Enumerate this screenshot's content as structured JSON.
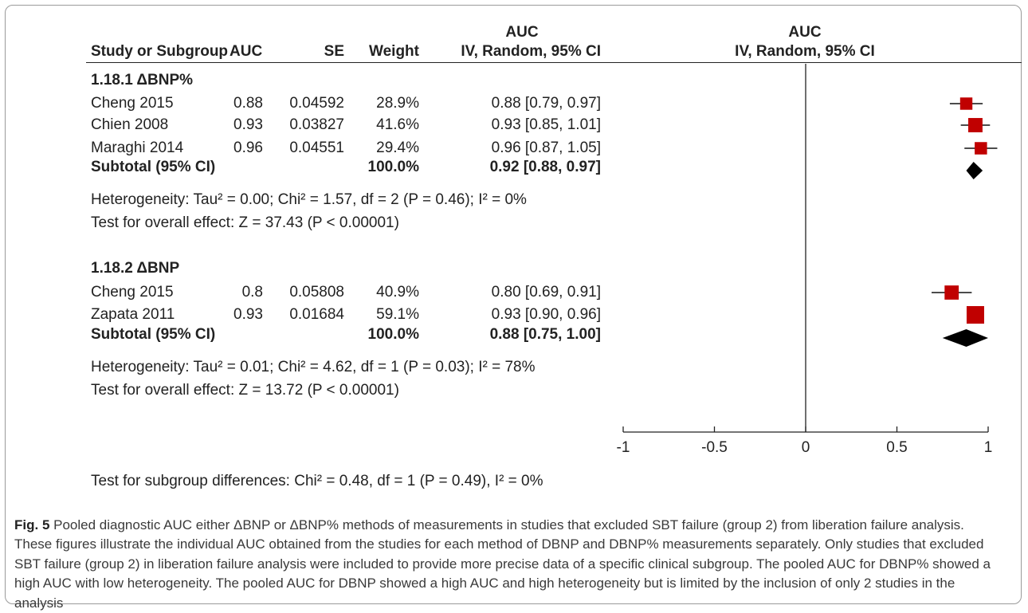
{
  "header": {
    "col_study": "Study or Subgroup",
    "col_auc": "AUC",
    "col_se": "SE",
    "col_weight": "Weight",
    "col_ci_top": "AUC",
    "col_ci": "IV, Random, 95% CI",
    "plot_top": "AUC",
    "plot_sub": "IV, Random, 95% CI"
  },
  "groups": [
    {
      "title": "1.18.1 ΔBNP%",
      "studies": [
        {
          "name": "Cheng 2015",
          "auc": "0.88",
          "se": "0.04592",
          "weight": "28.9%",
          "ci": "0.88 [0.79, 0.97]"
        },
        {
          "name": "Chien 2008",
          "auc": "0.93",
          "se": "0.03827",
          "weight": "41.6%",
          "ci": "0.93 [0.85, 1.01]"
        },
        {
          "name": "Maraghi 2014",
          "auc": "0.96",
          "se": "0.04551",
          "weight": "29.4%",
          "ci": "0.96 [0.87, 1.05]"
        }
      ],
      "subtotal": {
        "label": "Subtotal (95% CI)",
        "weight": "100.0%",
        "ci": "0.92 [0.88, 0.97]"
      },
      "heterogeneity": "Heterogeneity: Tau² = 0.00; Chi² = 1.57, df = 2 (P = 0.46); I² = 0%",
      "overall": "Test for overall effect: Z = 37.43 (P < 0.00001)"
    },
    {
      "title": "1.18.2 ΔBNP",
      "studies": [
        {
          "name": "Cheng 2015",
          "auc": "0.8",
          "se": "0.05808",
          "weight": "40.9%",
          "ci": "0.80 [0.69, 0.91]"
        },
        {
          "name": "Zapata 2011",
          "auc": "0.93",
          "se": "0.01684",
          "weight": "59.1%",
          "ci": "0.93 [0.90, 0.96]"
        }
      ],
      "subtotal": {
        "label": "Subtotal (95% CI)",
        "weight": "100.0%",
        "ci": "0.88 [0.75, 1.00]"
      },
      "heterogeneity": "Heterogeneity: Tau² = 0.01; Chi² = 4.62, df = 1 (P = 0.03); I² = 78%",
      "overall": "Test for overall effect: Z = 13.72 (P < 0.00001)"
    }
  ],
  "subgroup_test": "Test for subgroup differences: Chi² = 0.48, df = 1 (P = 0.49), I² = 0%",
  "caption": {
    "label": "Fig. 5",
    "text": " Pooled diagnostic AUC either ΔBNP or ΔBNP% methods of measurements in studies that excluded SBT failure (group 2) from liberation failure analysis. These figures illustrate the individual AUC obtained from the studies for each method of DBNP and DBNP% measurements separately. Only studies that excluded SBT failure (group 2) in liberation failure analysis were included to provide more precise data of a specific clinical subgroup. The pooled AUC for DBNP% showed a high AUC with low heterogeneity. The pooled AUC for DBNP showed a high AUC and high heterogeneity but is limited by the inclusion of only 2 studies in the analysis"
  },
  "chart_data": {
    "type": "forest",
    "xlim": [
      -1,
      1
    ],
    "ticks": [
      -1,
      -0.5,
      0,
      0.5,
      1
    ],
    "tick_labels": [
      "-1",
      "-0.5",
      "0",
      "0.5",
      "1"
    ],
    "null_line": 0,
    "marker_color": "#c00000",
    "diamond_color": "#000000",
    "series": [
      {
        "name": "Cheng 2015",
        "group": "1.18.1 ΔBNP%",
        "estimate": 0.88,
        "lower": 0.79,
        "upper": 0.97,
        "weight": 28.9
      },
      {
        "name": "Chien 2008",
        "group": "1.18.1 ΔBNP%",
        "estimate": 0.93,
        "lower": 0.85,
        "upper": 1.01,
        "weight": 41.6
      },
      {
        "name": "Maraghi 2014",
        "group": "1.18.1 ΔBNP%",
        "estimate": 0.96,
        "lower": 0.87,
        "upper": 1.05,
        "weight": 29.4
      },
      {
        "name": "Subtotal (95% CI)",
        "group": "1.18.1 ΔBNP%",
        "estimate": 0.92,
        "lower": 0.88,
        "upper": 0.97,
        "pooled": true
      },
      {
        "name": "Cheng 2015",
        "group": "1.18.2 ΔBNP",
        "estimate": 0.8,
        "lower": 0.69,
        "upper": 0.91,
        "weight": 40.9
      },
      {
        "name": "Zapata 2011",
        "group": "1.18.2 ΔBNP",
        "estimate": 0.93,
        "lower": 0.9,
        "upper": 0.96,
        "weight": 59.1
      },
      {
        "name": "Subtotal (95% CI)",
        "group": "1.18.2 ΔBNP",
        "estimate": 0.88,
        "lower": 0.75,
        "upper": 1.0,
        "pooled": true
      }
    ]
  }
}
